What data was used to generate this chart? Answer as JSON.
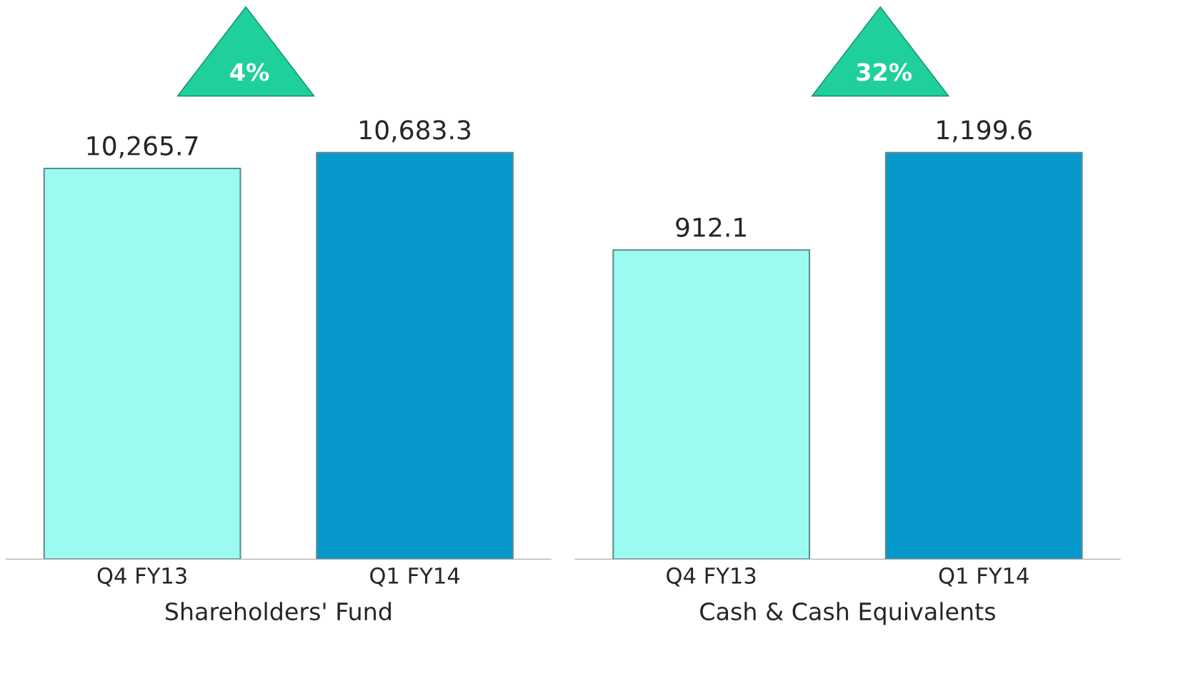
{
  "chart_data": [
    {
      "type": "bar",
      "xlabel": "Shareholders' Fund",
      "categories": [
        "Q4 FY13",
        "Q1 FY14"
      ],
      "values": [
        10265.7,
        10683.3
      ],
      "colors": [
        "#9bfbf0",
        "#0899cc"
      ],
      "value_labels": [
        "10,265.7",
        "10,683.3"
      ],
      "annotations": [
        "4%"
      ]
    },
    {
      "type": "bar",
      "xlabel": "Cash & Cash Equivalents",
      "categories": [
        "Q4 FY13",
        "Q1 FY14"
      ],
      "values": [
        912.1,
        1199.6
      ],
      "colors": [
        "#9bfbf0",
        "#0899cc"
      ],
      "value_labels": [
        "912.1",
        "1,199.6"
      ],
      "annotations": [
        "32%"
      ]
    }
  ]
}
